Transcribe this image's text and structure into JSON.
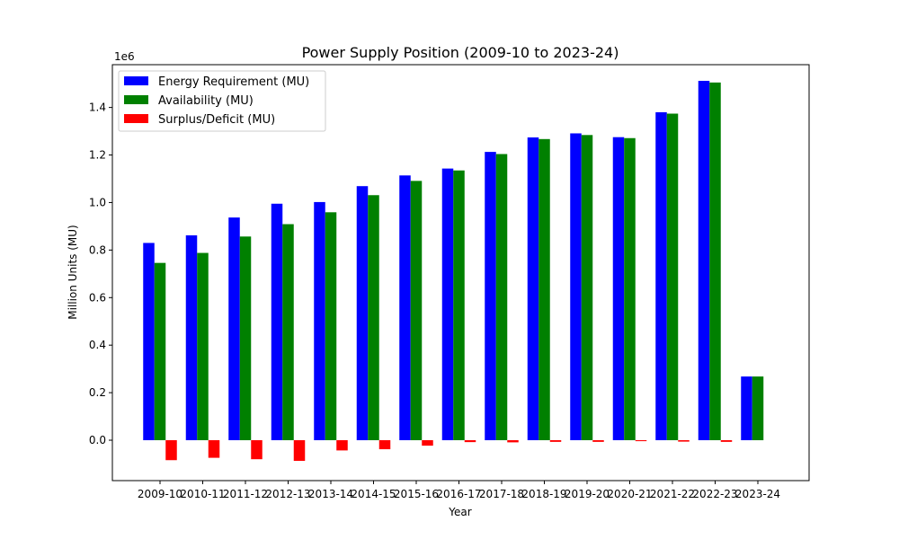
{
  "chart_data": {
    "type": "bar",
    "title": "Power Supply Position (2009-10 to 2023-24)",
    "xlabel": "Year",
    "ylabel": "Million Units (MU)",
    "y_multiplier_label": "1e6",
    "ylim": [
      -170000,
      1580000
    ],
    "yticks": [
      0.0,
      0.2,
      0.4,
      0.6,
      0.8,
      1.0,
      1.2,
      1.4
    ],
    "ytick_scale": 1000000,
    "grid": false,
    "legend_position": "top-left",
    "categories": [
      "2009-10",
      "2010-11",
      "2011-12",
      "2012-13",
      "2013-14",
      "2014-15",
      "2015-16",
      "2016-17",
      "2017-18",
      "2018-19",
      "2019-20",
      "2020-21",
      "2021-22",
      "2022-23",
      "2023-24"
    ],
    "series": [
      {
        "name": "Energy Requirement (MU)",
        "color": "#0000ff",
        "values": [
          830000,
          862000,
          937000,
          995000,
          1002000,
          1069000,
          1114000,
          1143000,
          1213000,
          1274000,
          1291000,
          1275000,
          1380000,
          1512000,
          268000
        ]
      },
      {
        "name": "Availability (MU)",
        "color": "#008000",
        "values": [
          746000,
          788000,
          857000,
          909000,
          959000,
          1031000,
          1091000,
          1135000,
          1204000,
          1267000,
          1284000,
          1271000,
          1374000,
          1505000,
          268000
        ]
      },
      {
        "name": "Surplus/Deficit (MU)",
        "color": "#ff0000",
        "values": [
          -84000,
          -74000,
          -80000,
          -87000,
          -43000,
          -38000,
          -23000,
          -8000,
          -9000,
          -7000,
          -7000,
          -4000,
          -6000,
          -7000,
          0
        ]
      }
    ]
  }
}
